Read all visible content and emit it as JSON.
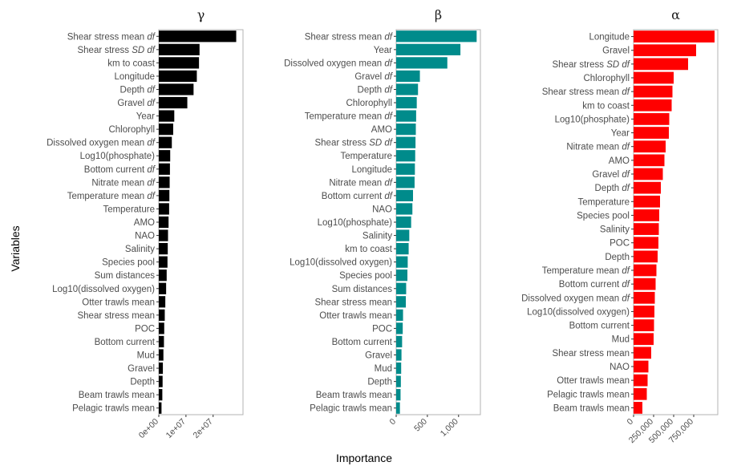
{
  "chart_data": [
    {
      "type": "bar",
      "orientation": "horizontal",
      "title": "γ",
      "color": "#000000",
      "xlim": [
        0,
        31000000
      ],
      "xticks": [
        {
          "value": 0,
          "label": "0e+00"
        },
        {
          "value": 10000000,
          "label": "1e+07"
        },
        {
          "value": 20000000,
          "label": "2e+07"
        }
      ],
      "bars": [
        {
          "label": "Shear stress mean ",
          "italic": "df",
          "value": 28500000
        },
        {
          "label": "Shear stress ",
          "italic": "SD df",
          "value": 15000000
        },
        {
          "label": "km to coast",
          "italic": "",
          "value": 14800000
        },
        {
          "label": "Longitude",
          "italic": "",
          "value": 14000000
        },
        {
          "label": "Depth ",
          "italic": "df",
          "value": 12800000
        },
        {
          "label": "Gravel ",
          "italic": "df",
          "value": 10500000
        },
        {
          "label": "Year",
          "italic": "",
          "value": 5700000
        },
        {
          "label": "Chlorophyll",
          "italic": "",
          "value": 5300000
        },
        {
          "label": "Dissolved oxygen mean ",
          "italic": "df",
          "value": 4800000
        },
        {
          "label": "Log10(phosphate)",
          "italic": "",
          "value": 4200000
        },
        {
          "label": "Bottom current ",
          "italic": "df",
          "value": 4100000
        },
        {
          "label": "Nitrate mean ",
          "italic": "df",
          "value": 4000000
        },
        {
          "label": "Temperature mean ",
          "italic": "df",
          "value": 3900000
        },
        {
          "label": "Temperature",
          "italic": "",
          "value": 3800000
        },
        {
          "label": "AMO",
          "italic": "",
          "value": 3600000
        },
        {
          "label": "NAO",
          "italic": "",
          "value": 3400000
        },
        {
          "label": "Salinity",
          "italic": "",
          "value": 3300000
        },
        {
          "label": "Species pool",
          "italic": "",
          "value": 3200000
        },
        {
          "label": "Sum distances",
          "italic": "",
          "value": 2900000
        },
        {
          "label": "Log10(dissolved oxygen)",
          "italic": "",
          "value": 2700000
        },
        {
          "label": "Otter trawls mean",
          "italic": "",
          "value": 2400000
        },
        {
          "label": "Shear stress mean",
          "italic": "",
          "value": 2200000
        },
        {
          "label": "POC",
          "italic": "",
          "value": 2000000
        },
        {
          "label": "Bottom current",
          "italic": "",
          "value": 1900000
        },
        {
          "label": "Mud",
          "italic": "",
          "value": 1700000
        },
        {
          "label": "Gravel",
          "italic": "",
          "value": 1500000
        },
        {
          "label": "Depth",
          "italic": "",
          "value": 1400000
        },
        {
          "label": "Beam trawls mean",
          "italic": "",
          "value": 1300000
        },
        {
          "label": "Pelagic trawls mean",
          "italic": "",
          "value": 1000000
        }
      ]
    },
    {
      "type": "bar",
      "orientation": "horizontal",
      "title": "β",
      "color": "#008b8b",
      "xlim": [
        0,
        1350
      ],
      "xticks": [
        {
          "value": 0,
          "label": "0"
        },
        {
          "value": 500,
          "label": "500"
        },
        {
          "value": 1000,
          "label": "1,000"
        }
      ],
      "bars": [
        {
          "label": "Shear stress mean ",
          "italic": "df",
          "value": 1290
        },
        {
          "label": "Year",
          "italic": "",
          "value": 1030
        },
        {
          "label": "Dissolved oxygen mean ",
          "italic": "df",
          "value": 820
        },
        {
          "label": "Gravel ",
          "italic": "df",
          "value": 380
        },
        {
          "label": "Depth ",
          "italic": "df",
          "value": 350
        },
        {
          "label": "Chlorophyll",
          "italic": "",
          "value": 330
        },
        {
          "label": "Temperature mean ",
          "italic": "df",
          "value": 320
        },
        {
          "label": "AMO",
          "italic": "",
          "value": 315
        },
        {
          "label": "Shear stress ",
          "italic": "SD df",
          "value": 310
        },
        {
          "label": "Temperature",
          "italic": "",
          "value": 305
        },
        {
          "label": "Longitude",
          "italic": "",
          "value": 300
        },
        {
          "label": "Nitrate mean ",
          "italic": "df",
          "value": 295
        },
        {
          "label": "Bottom current ",
          "italic": "df",
          "value": 270
        },
        {
          "label": "NAO",
          "italic": "",
          "value": 260
        },
        {
          "label": "Log10(phosphate)",
          "italic": "",
          "value": 240
        },
        {
          "label": "Salinity",
          "italic": "",
          "value": 210
        },
        {
          "label": "km to coast",
          "italic": "",
          "value": 200
        },
        {
          "label": "Log10(dissolved oxygen)",
          "italic": "",
          "value": 185
        },
        {
          "label": "Species pool",
          "italic": "",
          "value": 180
        },
        {
          "label": "Sum distances",
          "italic": "",
          "value": 160
        },
        {
          "label": "Shear stress mean",
          "italic": "",
          "value": 155
        },
        {
          "label": "Otter trawls mean",
          "italic": "",
          "value": 110
        },
        {
          "label": "POC",
          "italic": "",
          "value": 105
        },
        {
          "label": "Bottom current",
          "italic": "",
          "value": 95
        },
        {
          "label": "Gravel",
          "italic": "",
          "value": 85
        },
        {
          "label": "Mud",
          "italic": "",
          "value": 80
        },
        {
          "label": "Depth",
          "italic": "",
          "value": 75
        },
        {
          "label": "Beam trawls mean",
          "italic": "",
          "value": 70
        },
        {
          "label": "Pelagic trawls mean",
          "italic": "",
          "value": 60
        }
      ]
    },
    {
      "type": "bar",
      "orientation": "horizontal",
      "title": "α",
      "color": "#ff0000",
      "xlim": [
        0,
        1050000
      ],
      "xticks": [
        {
          "value": 0,
          "label": "0"
        },
        {
          "value": 250000,
          "label": "250,000"
        },
        {
          "value": 500000,
          "label": "500,000"
        },
        {
          "value": 750000,
          "label": "750,000"
        }
      ],
      "bars": [
        {
          "label": "Longitude",
          "italic": "",
          "value": 1010000
        },
        {
          "label": "Gravel",
          "italic": "",
          "value": 780000
        },
        {
          "label": "Shear stress ",
          "italic": "SD df",
          "value": 680000
        },
        {
          "label": "Chlorophyll",
          "italic": "",
          "value": 500000
        },
        {
          "label": "Shear stress mean ",
          "italic": "df",
          "value": 485000
        },
        {
          "label": "km to coast",
          "italic": "",
          "value": 475000
        },
        {
          "label": "Log10(phosphate)",
          "italic": "",
          "value": 445000
        },
        {
          "label": "Year",
          "italic": "",
          "value": 440000
        },
        {
          "label": "Nitrate mean ",
          "italic": "df",
          "value": 400000
        },
        {
          "label": "AMO",
          "italic": "",
          "value": 385000
        },
        {
          "label": "Gravel ",
          "italic": "df",
          "value": 365000
        },
        {
          "label": "Depth ",
          "italic": "df",
          "value": 340000
        },
        {
          "label": "Temperature",
          "italic": "",
          "value": 330000
        },
        {
          "label": "Species pool",
          "italic": "",
          "value": 320000
        },
        {
          "label": "Salinity",
          "italic": "",
          "value": 315000
        },
        {
          "label": "POC",
          "italic": "",
          "value": 310000
        },
        {
          "label": "Depth",
          "italic": "",
          "value": 300000
        },
        {
          "label": "Temperature mean ",
          "italic": "df",
          "value": 285000
        },
        {
          "label": "Bottom current ",
          "italic": "df",
          "value": 275000
        },
        {
          "label": "Dissolved oxygen mean ",
          "italic": "df",
          "value": 265000
        },
        {
          "label": "Log10(dissolved oxygen)",
          "italic": "",
          "value": 260000
        },
        {
          "label": "Bottom current",
          "italic": "",
          "value": 255000
        },
        {
          "label": "Mud",
          "italic": "",
          "value": 250000
        },
        {
          "label": "Shear stress mean",
          "italic": "",
          "value": 220000
        },
        {
          "label": "NAO",
          "italic": "",
          "value": 185000
        },
        {
          "label": "Otter trawls mean",
          "italic": "",
          "value": 175000
        },
        {
          "label": "Pelagic trawls mean",
          "italic": "",
          "value": 165000
        },
        {
          "label": "Beam trawls mean",
          "italic": "",
          "value": 110000
        }
      ]
    }
  ],
  "axes": {
    "ylabel": "Variables",
    "xlabel": "Importance"
  }
}
